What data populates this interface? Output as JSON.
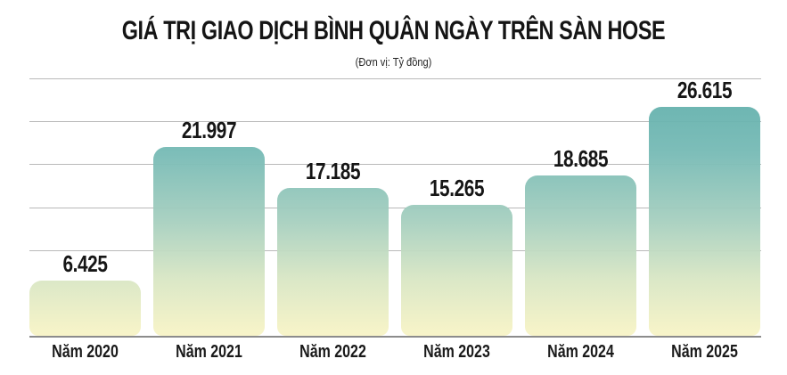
{
  "chart_data": {
    "type": "bar",
    "title": "GIÁ TRỊ GIAO DỊCH BÌNH QUÂN NGÀY TRÊN SÀN HOSE",
    "subtitle": "(Đơn vị: Tỷ đồng)",
    "categories": [
      "Năm 2020",
      "Năm 2021",
      "Năm 2022",
      "Năm 2023",
      "Năm 2024",
      "Năm 2025"
    ],
    "values": [
      6425,
      21997,
      17185,
      15265,
      18685,
      26615
    ],
    "value_labels": [
      "6.425",
      "21.997",
      "17.185",
      "15.265",
      "18.685",
      "26.615"
    ],
    "xlabel": "",
    "ylabel": "",
    "ylim": [
      0,
      30000
    ],
    "grid": true,
    "legend": null,
    "colors": {
      "bar_top": "#66b2ae",
      "bar_bottom": "#f8f4c6",
      "text": "#161616",
      "grid": "#b9b9b9"
    }
  }
}
